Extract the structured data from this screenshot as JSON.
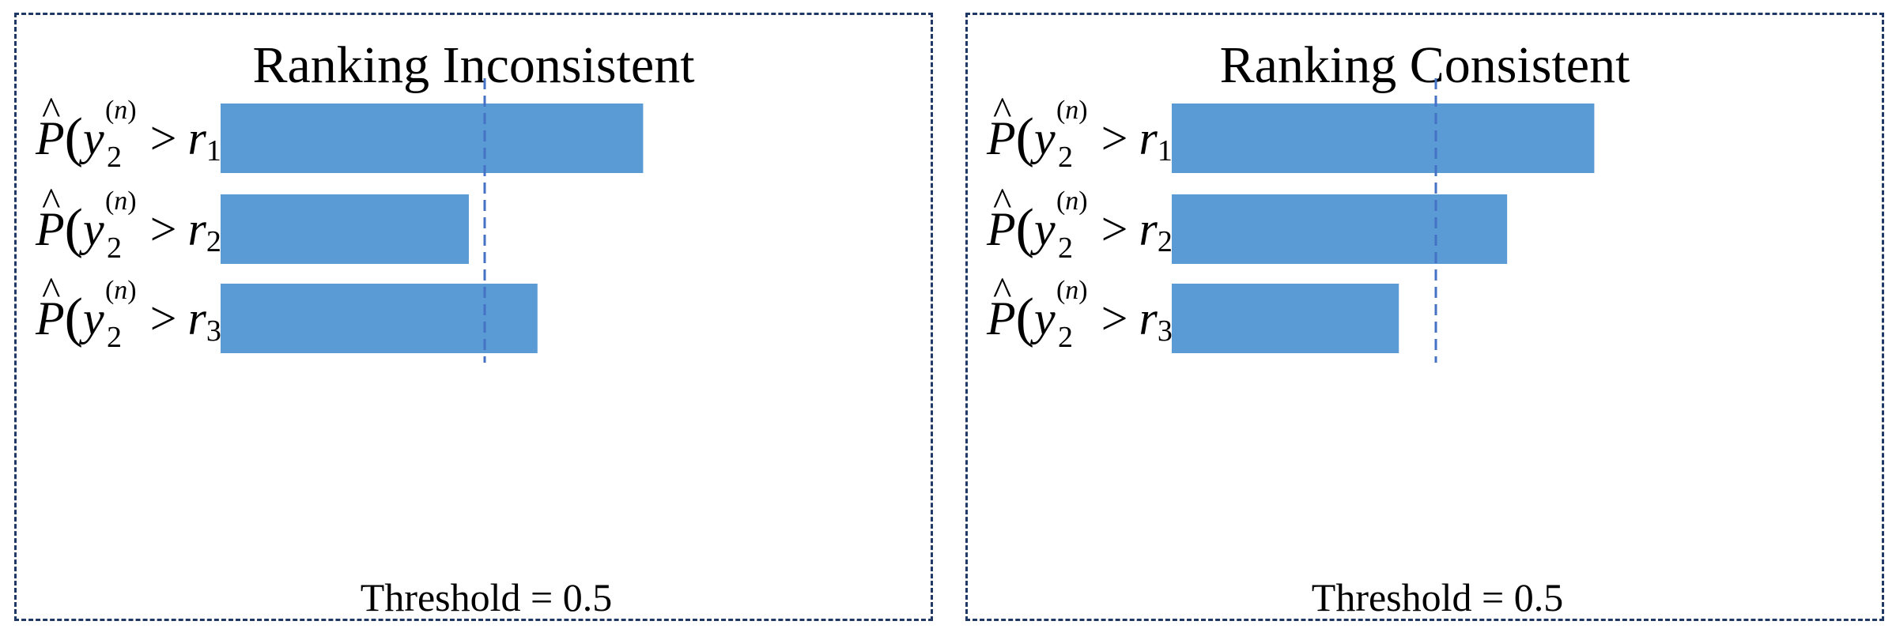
{
  "chart_data": [
    {
      "type": "bar",
      "orientation": "horizontal",
      "title": "Ranking Inconsistent",
      "categories": [
        {
          "hat": "P",
          "var": "y",
          "sub": "2",
          "sup": "n",
          "op": ">",
          "r": "r",
          "r_sub": "1"
        },
        {
          "hat": "P",
          "var": "y",
          "sub": "2",
          "sup": "n",
          "op": ">",
          "r": "r",
          "r_sub": "2"
        },
        {
          "hat": "P",
          "var": "y",
          "sub": "2",
          "sup": "n",
          "op": ">",
          "r": "r",
          "r_sub": "3"
        }
      ],
      "values": [
        0.8,
        0.47,
        0.6
      ],
      "xlim": [
        0,
        1
      ],
      "threshold": 0.5,
      "threshold_label": "Threshold = 0.5",
      "bar_color": "#5b9bd5",
      "threshold_color": "#4472c4",
      "grid": false
    },
    {
      "type": "bar",
      "orientation": "horizontal",
      "title": "Ranking Consistent",
      "categories": [
        {
          "hat": "P",
          "var": "y",
          "sub": "2",
          "sup": "n",
          "op": ">",
          "r": "r",
          "r_sub": "1"
        },
        {
          "hat": "P",
          "var": "y",
          "sub": "2",
          "sup": "n",
          "op": ">",
          "r": "r",
          "r_sub": "2"
        },
        {
          "hat": "P",
          "var": "y",
          "sub": "2",
          "sup": "n",
          "op": ">",
          "r": "r",
          "r_sub": "3"
        }
      ],
      "values": [
        0.8,
        0.635,
        0.43
      ],
      "xlim": [
        0,
        1
      ],
      "threshold": 0.5,
      "threshold_label": "Threshold = 0.5",
      "bar_color": "#5b9bd5",
      "threshold_color": "#4472c4",
      "grid": false
    }
  ]
}
